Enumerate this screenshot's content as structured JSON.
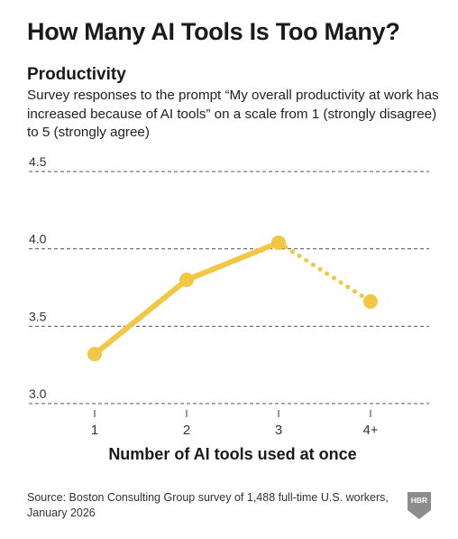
{
  "header": {
    "title": "How Many AI Tools Is Too Many?",
    "subtitle": "Productivity",
    "description": "Survey responses to the prompt “My overall productivity at work has increased because of AI tools” on a scale from 1 (strongly disagree) to 5 (strongly agree)"
  },
  "footer": {
    "source": "Source: Boston Consulting Group survey of 1,488 full-time U.S. workers, January 2026",
    "logo_text": "HBR"
  },
  "colors": {
    "line": "#f2c744",
    "grid": "#555555",
    "logo": "#8c8c8c"
  },
  "chart_data": {
    "type": "line",
    "categories": [
      "1",
      "2",
      "3",
      "4+"
    ],
    "values": [
      3.32,
      3.8,
      4.04,
      3.66
    ],
    "line_style": [
      "solid",
      "solid",
      "dotted"
    ],
    "xlabel": "Number of AI tools used at once",
    "ylabel": "",
    "ylim": [
      3.0,
      4.5
    ],
    "yticks": [
      "3.0",
      "3.5",
      "4.0",
      "4.5"
    ],
    "grid": true,
    "grid_style": "dashed"
  }
}
